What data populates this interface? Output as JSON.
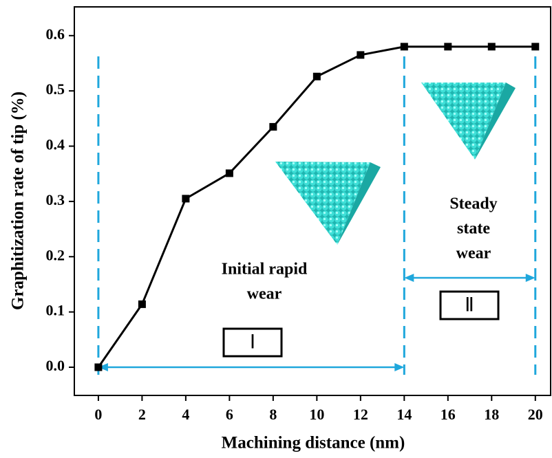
{
  "chart_data": {
    "type": "line",
    "x_label": "Machining distance (nm)",
    "y_label": "Graphitization rate of tip (%)",
    "x": [
      0,
      2,
      4,
      6,
      8,
      10,
      12,
      14,
      16,
      18,
      20
    ],
    "series": [
      {
        "color": "#000000",
        "values": [
          0,
          0.114,
          0.305,
          0.351,
          0.435,
          0.526,
          0.565,
          0.58,
          0.58,
          0.58,
          0.58
        ]
      }
    ],
    "xlim": [
      -1.1,
      20.7
    ],
    "ylim": [
      -0.051,
      0.652
    ],
    "xticks": [
      0,
      2,
      4,
      6,
      8,
      10,
      12,
      14,
      16,
      18,
      20
    ],
    "yticks": [
      {
        "value": 0,
        "label": "0.0"
      },
      0.1,
      0.2,
      0.3,
      0.4,
      0.5,
      0.6
    ],
    "region_color": "#1fa7dc",
    "regions": [
      {
        "start": 0,
        "end": 14,
        "label": "Ⅰ",
        "text": [
          "Initial rapid",
          "wear"
        ]
      },
      {
        "start": 14,
        "end": 20,
        "label": "Ⅱ",
        "text": [
          "Steady",
          "state",
          "wear"
        ]
      }
    ]
  }
}
